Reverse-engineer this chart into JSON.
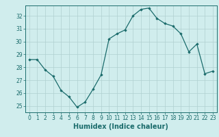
{
  "x": [
    0,
    1,
    2,
    3,
    4,
    5,
    6,
    7,
    8,
    9,
    10,
    11,
    12,
    13,
    14,
    15,
    16,
    17,
    18,
    19,
    20,
    21,
    22,
    23
  ],
  "y": [
    28.6,
    28.6,
    27.8,
    27.3,
    26.2,
    25.7,
    24.9,
    25.3,
    26.3,
    27.4,
    30.2,
    30.6,
    30.9,
    32.0,
    32.5,
    32.6,
    31.8,
    31.4,
    31.2,
    30.6,
    29.2,
    29.8,
    27.5,
    27.7
  ],
  "xlabel": "Humidex (Indice chaleur)",
  "xlim": [
    -0.5,
    23.5
  ],
  "ylim": [
    24.5,
    32.8
  ],
  "yticks": [
    25,
    26,
    27,
    28,
    29,
    30,
    31,
    32
  ],
  "xticks": [
    0,
    1,
    2,
    3,
    4,
    5,
    6,
    7,
    8,
    9,
    10,
    11,
    12,
    13,
    14,
    15,
    16,
    17,
    18,
    19,
    20,
    21,
    22,
    23
  ],
  "line_color": "#1a6b6b",
  "marker_color": "#1a6b6b",
  "bg_color": "#d0eded",
  "grid_color": "#afd0d0",
  "axis_color": "#1a6b6b",
  "tick_color": "#1a6b6b",
  "label_color": "#1a6b6b",
  "font_size_ticks": 5.5,
  "font_size_xlabel": 7.0,
  "marker": "D",
  "marker_size": 1.8,
  "linewidth": 0.9
}
